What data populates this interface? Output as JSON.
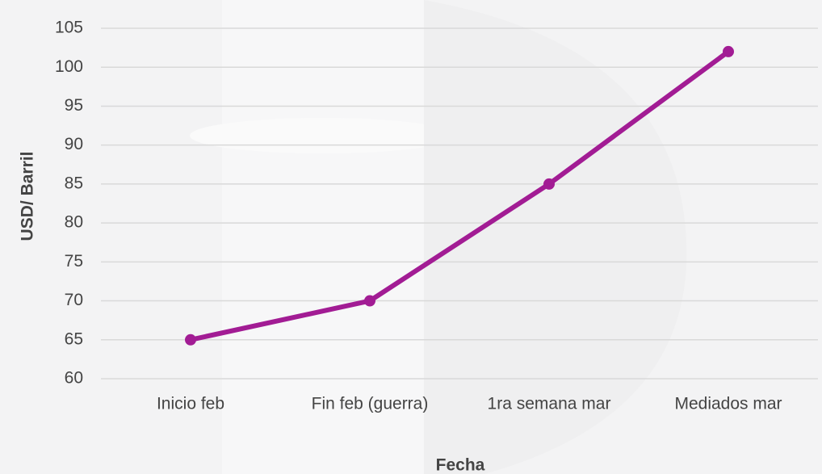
{
  "chart_data": {
    "type": "line",
    "x_label": "Fecha",
    "y_label": "USD/ Barril",
    "categories": [
      "Inicio feb",
      "Fin feb (guerra)",
      "1ra semana mar",
      "Mediados mar"
    ],
    "series": [
      {
        "name": "USD/ Barril",
        "color": "#a21c94",
        "values": [
          65,
          70,
          85,
          102
        ]
      }
    ],
    "ylim": [
      60,
      105
    ],
    "yticks": [
      60,
      65,
      70,
      75,
      80,
      85,
      90,
      95,
      100,
      105
    ],
    "grid": true
  }
}
